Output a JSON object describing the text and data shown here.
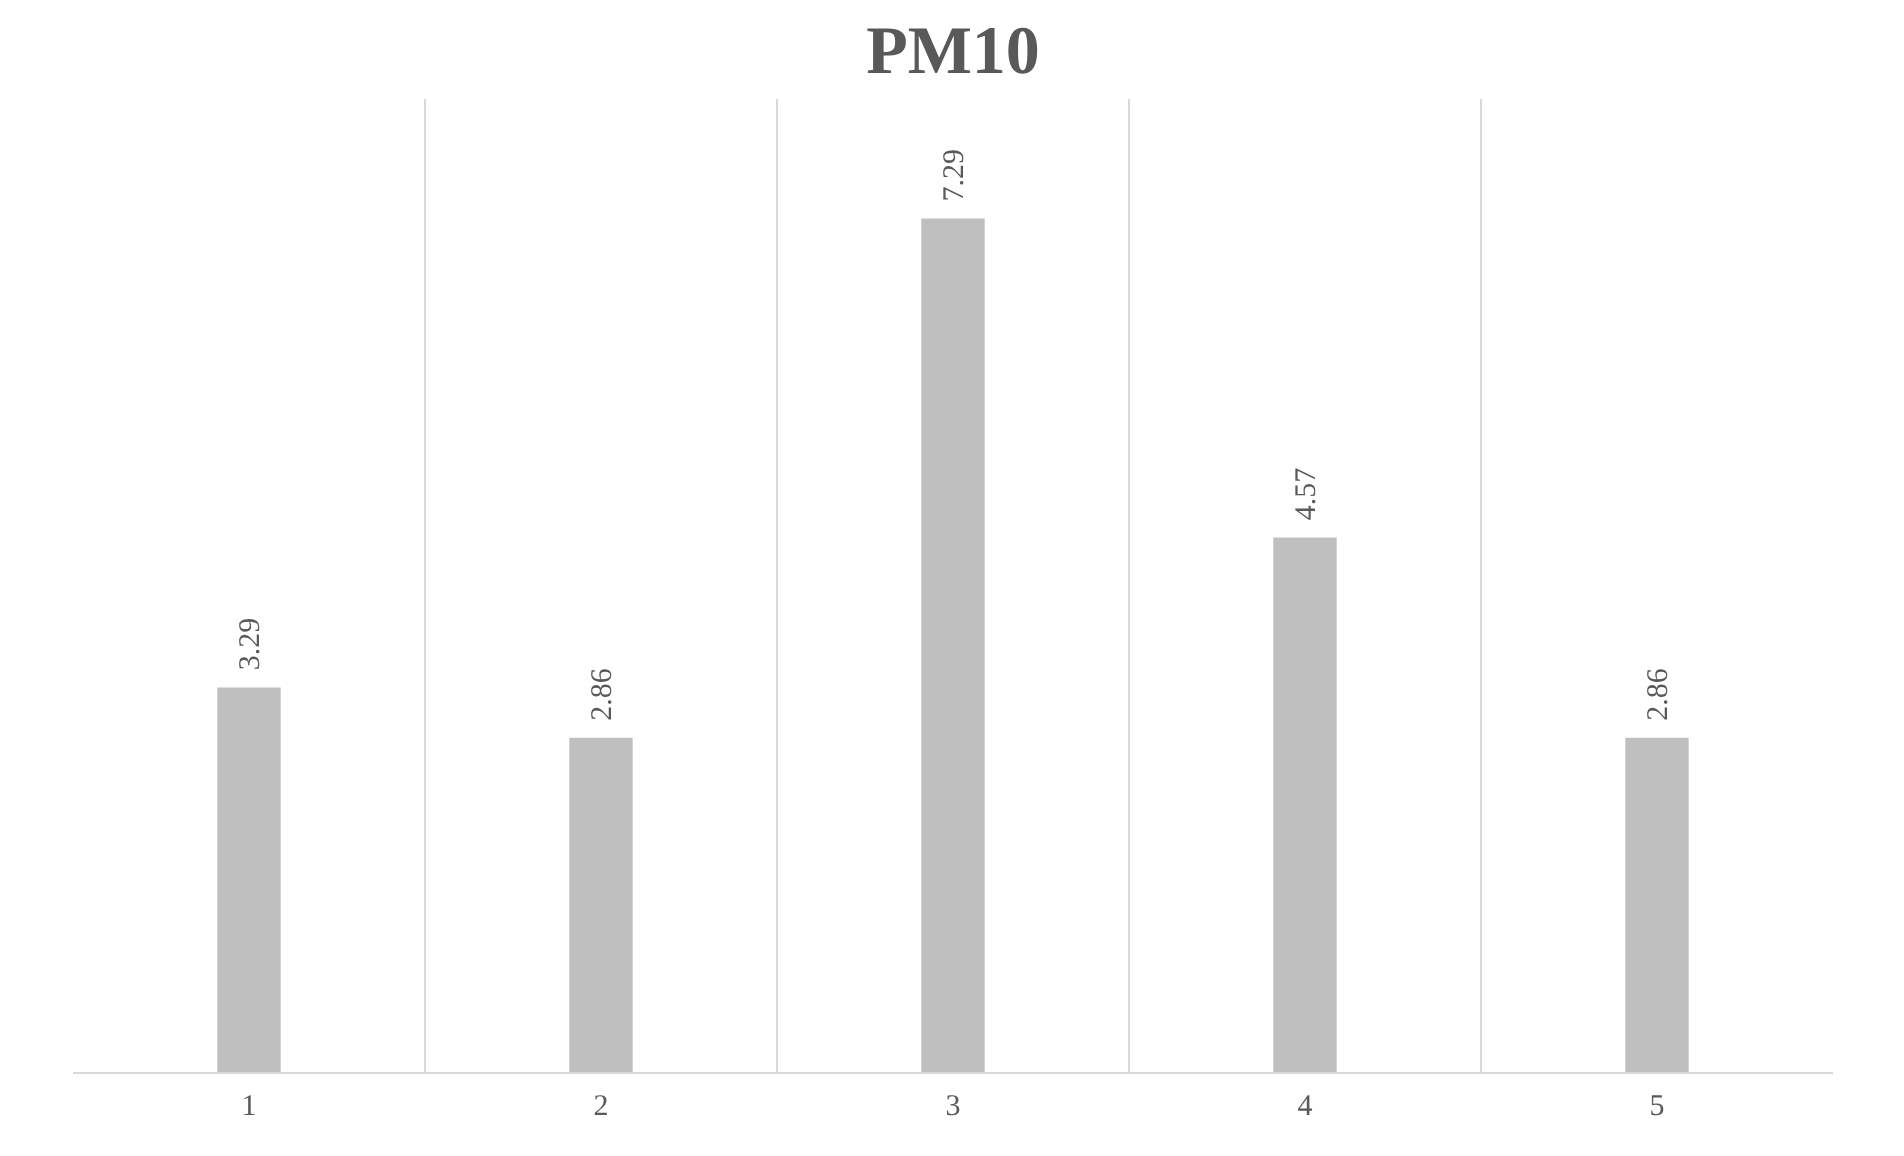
{
  "chart_data": {
    "type": "bar",
    "title": "PM10",
    "categories": [
      "1",
      "2",
      "3",
      "4",
      "5"
    ],
    "values": [
      3.29,
      2.86,
      7.29,
      4.57,
      2.86
    ],
    "color": "#bfbfbf",
    "data_labels": true,
    "grid": "x"
  }
}
